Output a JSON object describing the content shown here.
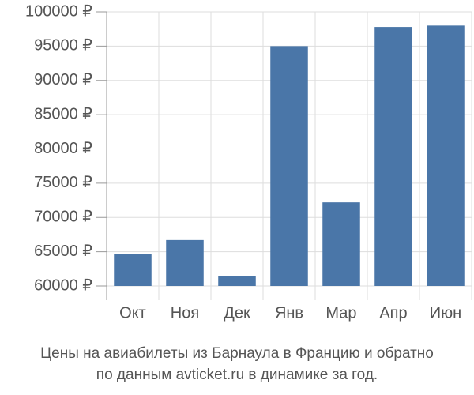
{
  "chart_data": {
    "type": "bar",
    "title_lines": [
      "Цены на авиабилеты из Барнаула в Францию и обратно",
      "по данным avticket.ru в динамике за год."
    ],
    "categories": [
      "Окт",
      "Ноя",
      "Дек",
      "Янв",
      "Мар",
      "Апр",
      "Июн"
    ],
    "values": [
      64700,
      66700,
      61400,
      95000,
      72200,
      97800,
      98000
    ],
    "color": "#4a76a8",
    "ylim": [
      60000,
      100000
    ],
    "yticks": [
      {
        "value": 60000,
        "label": "60000 ₽"
      },
      {
        "value": 65000,
        "label": "65000 ₽"
      },
      {
        "value": 70000,
        "label": "70000 ₽"
      },
      {
        "value": 75000,
        "label": "75000 ₽"
      },
      {
        "value": 80000,
        "label": "80000 ₽"
      },
      {
        "value": 85000,
        "label": "85000 ₽"
      },
      {
        "value": 90000,
        "label": "90000 ₽"
      },
      {
        "value": 95000,
        "label": "95000 ₽"
      },
      {
        "value": 100000,
        "label": "100000 ₽"
      }
    ],
    "grid": true
  }
}
